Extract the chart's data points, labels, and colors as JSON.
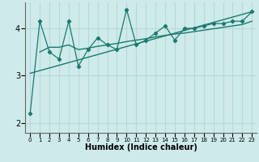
{
  "xlabel": "Humidex (Indice chaleur)",
  "ylabel": "",
  "background_color": "#ceeaea",
  "line_color": "#1a7a6e",
  "grid_color": "#b8d8d8",
  "xlim": [
    -0.5,
    23.5
  ],
  "ylim": [
    1.8,
    4.55
  ],
  "yticks": [
    2,
    3,
    4
  ],
  "xticks": [
    0,
    1,
    2,
    3,
    4,
    5,
    6,
    7,
    8,
    9,
    10,
    11,
    12,
    13,
    14,
    15,
    16,
    17,
    18,
    19,
    20,
    21,
    22,
    23
  ],
  "main_x": [
    0,
    1,
    2,
    3,
    4,
    5,
    6,
    7,
    8,
    9,
    10,
    11,
    12,
    13,
    14,
    15,
    16,
    17,
    18,
    19,
    20,
    21,
    22,
    23
  ],
  "main_y": [
    2.2,
    4.15,
    3.5,
    3.35,
    4.15,
    3.2,
    3.55,
    3.8,
    3.65,
    3.55,
    4.4,
    3.65,
    3.75,
    3.9,
    4.05,
    3.75,
    4.0,
    4.0,
    4.05,
    4.1,
    4.1,
    4.15,
    4.15,
    4.35
  ],
  "smooth_x": [
    1,
    2,
    3,
    4,
    5,
    6,
    7,
    8,
    9,
    10,
    11,
    12,
    13,
    14,
    15,
    16,
    17,
    18,
    19,
    20,
    21,
    22,
    23
  ],
  "smooth_y": [
    3.5,
    3.6,
    3.6,
    3.65,
    3.55,
    3.58,
    3.62,
    3.65,
    3.68,
    3.72,
    3.75,
    3.78,
    3.82,
    3.85,
    3.88,
    3.9,
    3.93,
    3.96,
    3.99,
    4.02,
    4.05,
    4.08,
    4.15
  ],
  "trend_x": [
    0,
    23
  ],
  "trend_y": [
    3.05,
    4.35
  ]
}
